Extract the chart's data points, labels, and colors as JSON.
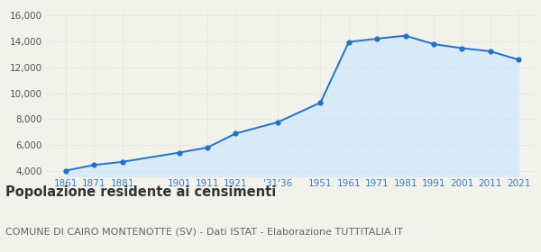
{
  "years": [
    1861,
    1871,
    1881,
    1901,
    1911,
    1921,
    1936,
    1951,
    1961,
    1971,
    1981,
    1991,
    2001,
    2011,
    2021
  ],
  "population": [
    4050,
    4480,
    4720,
    5430,
    5820,
    6900,
    7780,
    9280,
    13950,
    14200,
    14430,
    13780,
    13470,
    13230,
    12580
  ],
  "yticks": [
    4000,
    6000,
    8000,
    10000,
    12000,
    14000,
    16000
  ],
  "ylim_bottom": 3600,
  "ylim_top": 16400,
  "xlim_left": 1854,
  "xlim_right": 2027,
  "xtick_positions": [
    1861,
    1871,
    1881,
    1901,
    1911,
    1921,
    1936,
    1951,
    1961,
    1971,
    1981,
    1991,
    2001,
    2011,
    2021
  ],
  "xtick_labels": [
    "1861",
    "1871",
    "1881",
    "1901",
    "1911",
    "1921",
    "'31'36",
    "1951",
    "1961",
    "1971",
    "1981",
    "1991",
    "2001",
    "2011",
    "2021"
  ],
  "line_color": "#2272c3",
  "fill_color": "#d8eaf8",
  "marker_color": "#2272c3",
  "bg_color": "#f2f2ec",
  "grid_color": "#d8d8d0",
  "title": "Popolazione residente ai censimenti",
  "subtitle": "COMUNE DI CAIRO MONTENOTTE (SV) - Dati ISTAT - Elaborazione TUTTITALIA.IT",
  "title_fontsize": 10.5,
  "subtitle_fontsize": 8,
  "tick_color": "#3a7abf",
  "ytick_color": "#555555",
  "tick_fontsize": 7.5,
  "marker_size": 20
}
